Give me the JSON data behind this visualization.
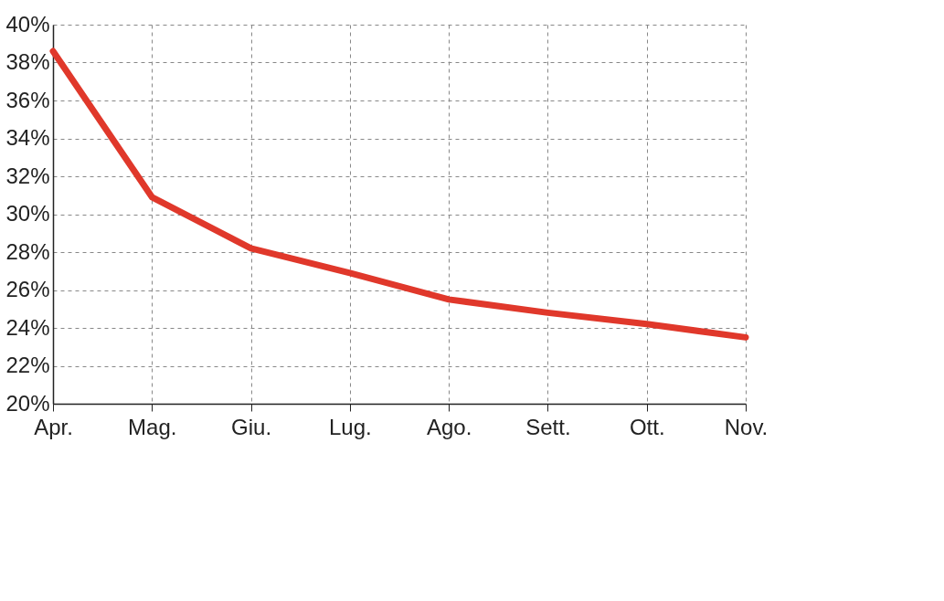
{
  "chart_data": {
    "type": "line",
    "categories": [
      "Apr.",
      "Mag.",
      "Giu.",
      "Lug.",
      "Ago.",
      "Sett.",
      "Ott.",
      "Nov."
    ],
    "series": [
      {
        "color": "#e0382b",
        "values": [
          38.6,
          30.9,
          28.2,
          26.9,
          25.5,
          24.8,
          24.2,
          23.5
        ]
      }
    ],
    "ylim": [
      20,
      40
    ],
    "yticks": [
      {
        "value": 20,
        "label": "20%"
      },
      {
        "value": 22,
        "label": "22%"
      },
      {
        "value": 24,
        "label": "24%"
      },
      {
        "value": 26,
        "label": "26%"
      },
      {
        "value": 28,
        "label": "28%"
      },
      {
        "value": 30,
        "label": "30%"
      },
      {
        "value": 32,
        "label": "32%"
      },
      {
        "value": 34,
        "label": "34%"
      },
      {
        "value": 36,
        "label": "36%"
      },
      {
        "value": 38,
        "label": "38%"
      },
      {
        "value": 40,
        "label": "40%"
      }
    ],
    "grid": true,
    "line_style": "solid"
  }
}
